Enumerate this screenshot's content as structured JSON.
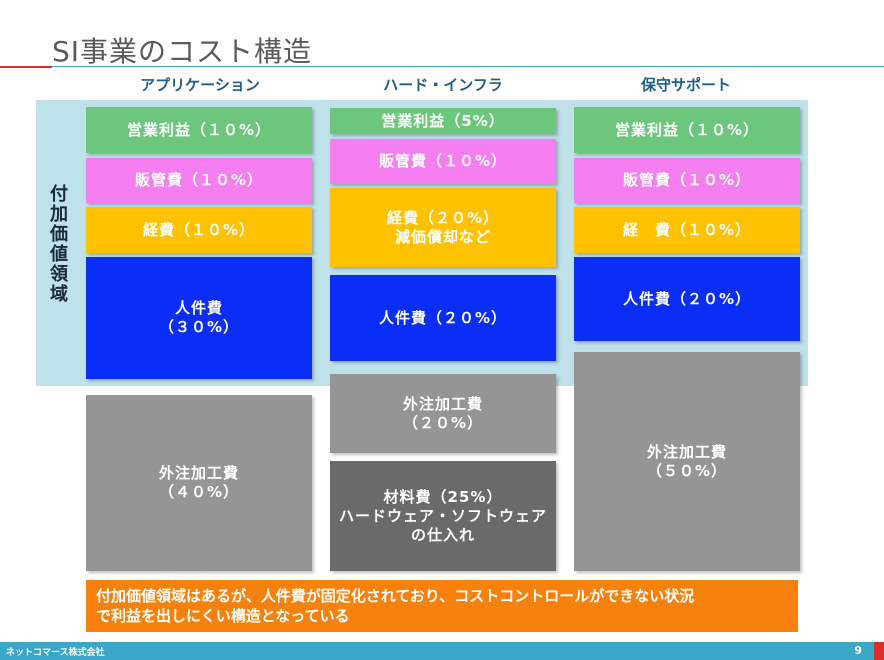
{
  "title": "SI事業のコスト構造",
  "columns": [
    "アプリケーション",
    "ハード・インフラ",
    "保守サポート"
  ],
  "value_added_label": "付加価値領域",
  "app": {
    "operating_profit": "営業利益（１０%）",
    "sga": "販管費（１０%）",
    "expenses": "経費（１０%）",
    "labor_1": "人件費",
    "labor_2": "（３０%）",
    "outsourcing_1": "外注加工費",
    "outsourcing_2": "（４０%）"
  },
  "hw": {
    "operating_profit": "営業利益（5%）",
    "sga": "販管費（１０%）",
    "expenses_1": "経費（２０%）",
    "expenses_2": "減価償却など",
    "labor": "人件費（２０%）",
    "outsourcing_1": "外注加工費",
    "outsourcing_2": "（２０%）",
    "materials_1": "材料費（25%）",
    "materials_2": "ハードウェア・ソフトウェア",
    "materials_3": "の仕入れ"
  },
  "support": {
    "operating_profit": "営業利益（１０%）",
    "sga": "販管費（１０%）",
    "expenses": "経　費（１０%）",
    "labor": "人件費（２０%）",
    "outsourcing_1": "外注加工費",
    "outsourcing_2": "（５０%）"
  },
  "note_1": "付加価値領域はあるが、人件費が固定化されており、コストコントロールができない状況",
  "note_2": "で利益を出しにくい構造となっている",
  "footer": {
    "company": "ネットコマース株式会社",
    "page": "9"
  },
  "colors": {
    "profit": "#6cc77c",
    "sga": "#f57ef0",
    "expenses": "#ffc200",
    "labor": "#0a2ef5",
    "outsourcing": "#959595",
    "materials": "#6a6a6a",
    "value_added_band": "#bfe1ea",
    "note": "#f6820d",
    "footer": "#3aa6c8",
    "accent": "#d9302a"
  }
}
